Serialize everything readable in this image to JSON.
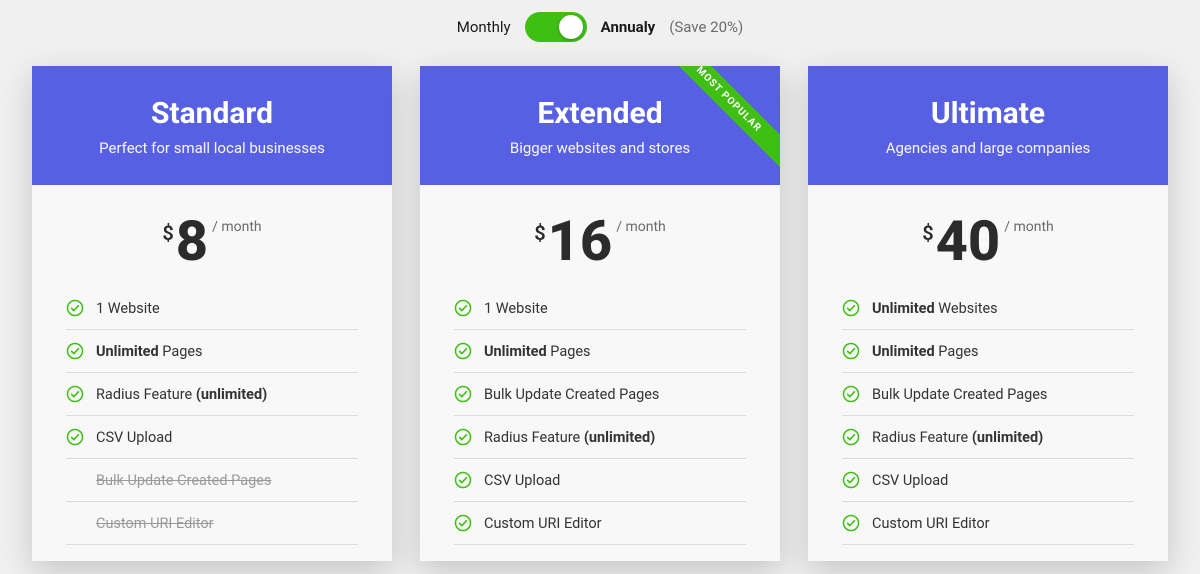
{
  "colors": {
    "header_bg": "#5760e2",
    "toggle_on": "#3fbf14",
    "check_green": "#3fbf14",
    "ribbon_bg": "#3fbf14"
  },
  "billing": {
    "monthly_label": "Monthly",
    "annually_label": "Annualy",
    "save_label": "(Save 20%)"
  },
  "plans": [
    {
      "name": "Standard",
      "tagline": "Perfect for small local businesses",
      "currency": "$",
      "amount": "8",
      "period": "/ month",
      "ribbon": null,
      "features": [
        {
          "html": "1 Website",
          "enabled": true
        },
        {
          "html": "<b>Unlimited</b> Pages",
          "enabled": true
        },
        {
          "html": "Radius Feature <b>(unlimited)</b>",
          "enabled": true
        },
        {
          "html": "CSV Upload",
          "enabled": true
        },
        {
          "html": "Bulk Update Created Pages",
          "enabled": false
        },
        {
          "html": "Custom URI Editor",
          "enabled": false
        }
      ]
    },
    {
      "name": "Extended",
      "tagline": "Bigger websites and stores",
      "currency": "$",
      "amount": "16",
      "period": "/ month",
      "ribbon": "MOST POPULAR",
      "features": [
        {
          "html": "1 Website",
          "enabled": true
        },
        {
          "html": "<b>Unlimited</b> Pages",
          "enabled": true
        },
        {
          "html": "Bulk Update Created Pages",
          "enabled": true
        },
        {
          "html": "Radius Feature <b>(unlimited)</b>",
          "enabled": true
        },
        {
          "html": "CSV Upload",
          "enabled": true
        },
        {
          "html": "Custom URI Editor",
          "enabled": true
        }
      ]
    },
    {
      "name": "Ultimate",
      "tagline": "Agencies and large companies",
      "currency": "$",
      "amount": "40",
      "period": "/ month",
      "ribbon": null,
      "features": [
        {
          "html": "<b>Unlimited</b> Websites",
          "enabled": true
        },
        {
          "html": "<b>Unlimited</b> Pages",
          "enabled": true
        },
        {
          "html": "Bulk Update Created Pages",
          "enabled": true
        },
        {
          "html": "Radius Feature <b>(unlimited)</b>",
          "enabled": true
        },
        {
          "html": "CSV Upload",
          "enabled": true
        },
        {
          "html": "Custom URI Editor",
          "enabled": true
        }
      ]
    }
  ]
}
